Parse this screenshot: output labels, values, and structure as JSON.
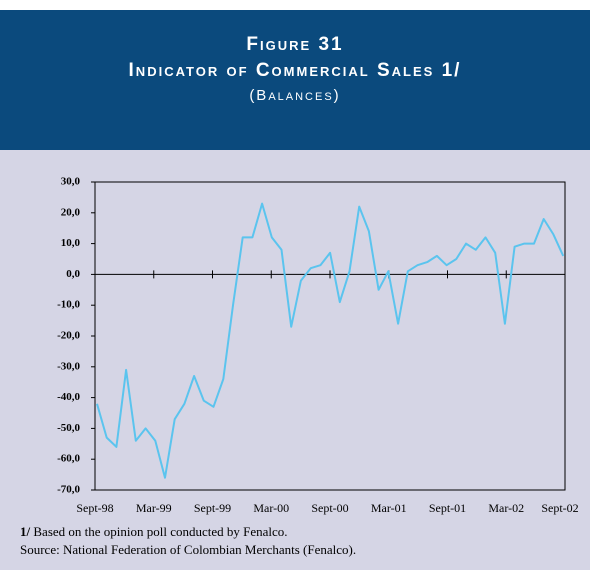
{
  "chart_data": {
    "type": "line",
    "title": "Figure 31",
    "subtitle": "Indicator of Commercial Sales 1/",
    "unit_note": "(Balances)",
    "categories": [
      "Sept-98",
      null,
      null,
      null,
      null,
      null,
      "Mar-99",
      null,
      null,
      null,
      null,
      null,
      "Sept-99",
      null,
      null,
      null,
      null,
      null,
      "Mar-00",
      null,
      null,
      null,
      null,
      null,
      "Sept-00",
      null,
      null,
      null,
      null,
      null,
      "Mar-01",
      null,
      null,
      null,
      null,
      null,
      "Sept-01",
      null,
      null,
      null,
      null,
      null,
      "Mar-02",
      null,
      null,
      null,
      null,
      null,
      "Sept-02"
    ],
    "values": [
      -42,
      -53,
      -56,
      -31,
      -54,
      -50,
      -54,
      -66,
      -47,
      -42,
      -33,
      -41,
      -43,
      -34,
      -10,
      12,
      12,
      23,
      12,
      8,
      -17,
      -2,
      2,
      3,
      7,
      -9,
      1,
      22,
      14,
      -5,
      1,
      -16,
      1,
      3,
      4,
      6,
      3,
      5,
      10,
      8,
      12,
      7,
      -16,
      9,
      10,
      10,
      18,
      13,
      6
    ],
    "color": "#5bc4ee",
    "ylim": [
      -70,
      30
    ],
    "yticks": [
      {
        "value": -70,
        "label": "-70,0"
      },
      {
        "value": -60,
        "label": "-60,0"
      },
      {
        "value": -50,
        "label": "-50,0"
      },
      {
        "value": -40,
        "label": "-40,0"
      },
      {
        "value": -30,
        "label": "-30,0"
      },
      {
        "value": -20,
        "label": "-20,0"
      },
      {
        "value": -10,
        "label": "-10,0"
      },
      {
        "value": 0,
        "label": "0,0"
      },
      {
        "value": 10,
        "label": "10,0"
      },
      {
        "value": 20,
        "label": "20,0"
      },
      {
        "value": 30,
        "label": "30,0"
      }
    ],
    "footnote": {
      "marker": "1/",
      "text": " Based on the opinion poll conducted by Fenalco."
    },
    "source": "Source: National Federation of Colombian Merchants (Fenalco)."
  }
}
